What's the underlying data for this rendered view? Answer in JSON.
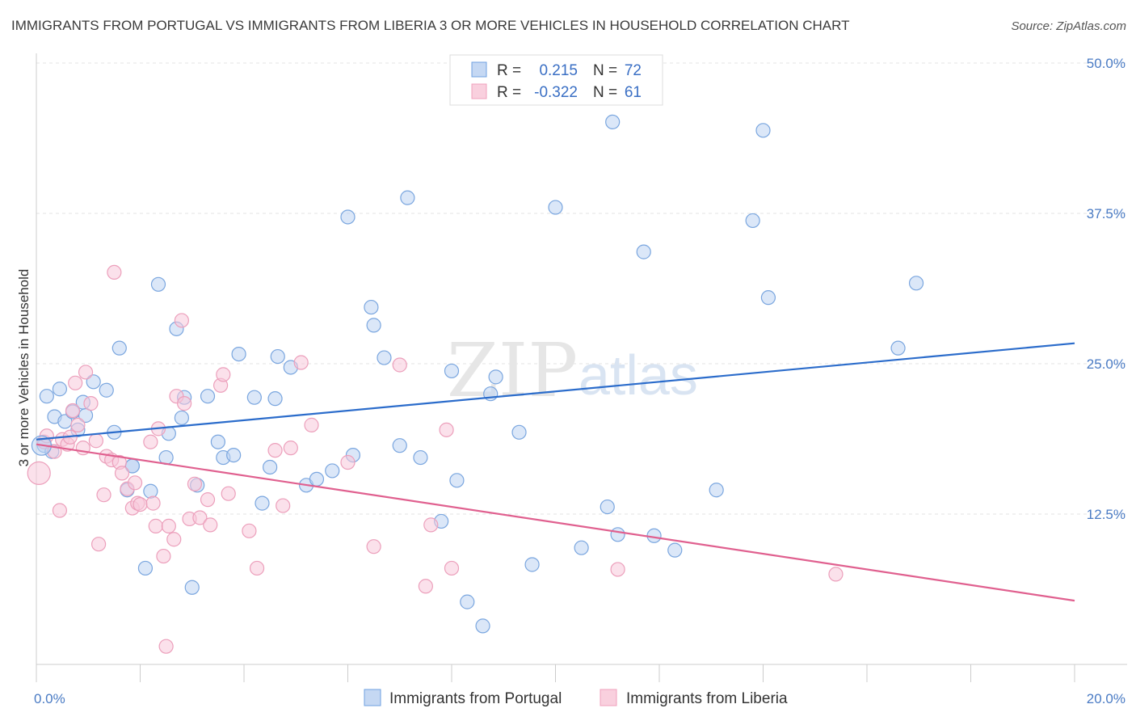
{
  "title": "IMMIGRANTS FROM PORTUGAL VS IMMIGRANTS FROM LIBERIA 3 OR MORE VEHICLES IN HOUSEHOLD CORRELATION CHART",
  "source": "Source: ZipAtlas.com",
  "watermark": {
    "zip": "ZIP",
    "atlas": "atlas"
  },
  "colors": {
    "portugal": "#6fa1e0",
    "portugal_line": "#2b6ccb",
    "liberia": "#f0a0bc",
    "liberia_line": "#e0608f",
    "tick": "#4a7bc4"
  },
  "legend": {
    "series": [
      {
        "r_label": "R =",
        "r_value": "0.215",
        "n_label": "N =",
        "n_value": "72"
      },
      {
        "r_label": "R =",
        "r_value": "-0.322",
        "n_label": "N =",
        "n_value": "61"
      }
    ]
  },
  "chart_data": {
    "type": "scatter",
    "title": "IMMIGRANTS FROM PORTUGAL VS IMMIGRANTS FROM LIBERIA 3 OR MORE VEHICLES IN HOUSEHOLD CORRELATION CHART",
    "xlabel": "",
    "ylabel": "3 or more Vehicles in Household",
    "xlim": [
      0,
      20
    ],
    "ylim": [
      0,
      50
    ],
    "x_tick_labels": [
      "0.0%",
      "20.0%"
    ],
    "y_ticks": [
      12.5,
      25.0,
      37.5,
      50.0
    ],
    "y_tick_labels": [
      "12.5%",
      "25.0%",
      "37.5%",
      "50.0%"
    ],
    "grid": true,
    "legend_position": "top-center",
    "series": [
      {
        "name": "Immigrants from Portugal",
        "color": "#6fa1e0",
        "trend": {
          "x": [
            0,
            20
          ],
          "y": [
            18.7,
            26.7
          ]
        },
        "points": [
          [
            0.2,
            22.3
          ],
          [
            0.45,
            22.9
          ],
          [
            0.35,
            20.6
          ],
          [
            0.55,
            20.2
          ],
          [
            0.7,
            21.0
          ],
          [
            0.8,
            19.5
          ],
          [
            0.95,
            20.7
          ],
          [
            0.9,
            21.8
          ],
          [
            1.1,
            23.5
          ],
          [
            1.35,
            22.8
          ],
          [
            0.15,
            18.2
          ],
          [
            0.3,
            17.7
          ],
          [
            1.5,
            19.3
          ],
          [
            1.6,
            26.3
          ],
          [
            1.85,
            16.5
          ],
          [
            1.75,
            14.5
          ],
          [
            2.2,
            14.4
          ],
          [
            2.5,
            17.2
          ],
          [
            2.55,
            19.2
          ],
          [
            2.35,
            31.6
          ],
          [
            2.7,
            27.9
          ],
          [
            2.85,
            22.2
          ],
          [
            2.8,
            20.5
          ],
          [
            3.1,
            14.9
          ],
          [
            3.3,
            22.3
          ],
          [
            3.5,
            18.5
          ],
          [
            3.6,
            17.2
          ],
          [
            3.8,
            17.4
          ],
          [
            3.9,
            25.8
          ],
          [
            4.2,
            22.2
          ],
          [
            4.35,
            13.4
          ],
          [
            4.5,
            16.4
          ],
          [
            4.6,
            22.1
          ],
          [
            4.65,
            25.6
          ],
          [
            4.9,
            24.7
          ],
          [
            5.2,
            14.9
          ],
          [
            5.4,
            15.4
          ],
          [
            5.7,
            16.1
          ],
          [
            6.0,
            37.2
          ],
          [
            6.1,
            17.4
          ],
          [
            6.45,
            29.7
          ],
          [
            6.5,
            28.2
          ],
          [
            6.7,
            25.5
          ],
          [
            7.0,
            18.2
          ],
          [
            7.15,
            38.8
          ],
          [
            7.4,
            17.2
          ],
          [
            7.8,
            11.9
          ],
          [
            8.0,
            24.4
          ],
          [
            8.1,
            15.3
          ],
          [
            8.3,
            5.2
          ],
          [
            8.6,
            3.2
          ],
          [
            8.75,
            22.5
          ],
          [
            8.85,
            23.9
          ],
          [
            9.3,
            19.3
          ],
          [
            9.55,
            8.3
          ],
          [
            10.0,
            38.0
          ],
          [
            10.5,
            9.7
          ],
          [
            11.0,
            13.1
          ],
          [
            11.1,
            45.1
          ],
          [
            11.2,
            10.8
          ],
          [
            11.7,
            34.3
          ],
          [
            11.9,
            10.7
          ],
          [
            12.3,
            9.5
          ],
          [
            13.1,
            14.5
          ],
          [
            13.8,
            36.9
          ],
          [
            14.0,
            44.4
          ],
          [
            14.1,
            30.5
          ],
          [
            16.6,
            26.3
          ],
          [
            16.95,
            31.7
          ],
          [
            1.85,
            16.5
          ],
          [
            3.0,
            6.4
          ],
          [
            2.1,
            8.0
          ]
        ]
      },
      {
        "name": "Immigrants from Liberia",
        "color": "#f0a0bc",
        "trend": {
          "x": [
            0,
            20
          ],
          "y": [
            18.3,
            5.3
          ]
        },
        "points": [
          [
            0.05,
            15.9
          ],
          [
            0.15,
            18.5
          ],
          [
            0.2,
            19.0
          ],
          [
            0.35,
            17.7
          ],
          [
            0.45,
            12.8
          ],
          [
            0.5,
            18.7
          ],
          [
            0.6,
            18.3
          ],
          [
            0.65,
            18.9
          ],
          [
            0.7,
            21.1
          ],
          [
            0.75,
            23.4
          ],
          [
            0.8,
            19.9
          ],
          [
            0.9,
            18.0
          ],
          [
            0.95,
            24.3
          ],
          [
            1.05,
            21.7
          ],
          [
            1.15,
            18.6
          ],
          [
            1.2,
            10.0
          ],
          [
            1.3,
            14.1
          ],
          [
            1.35,
            17.3
          ],
          [
            1.45,
            17.0
          ],
          [
            1.5,
            32.6
          ],
          [
            1.6,
            16.8
          ],
          [
            1.65,
            15.9
          ],
          [
            1.75,
            14.6
          ],
          [
            1.85,
            13.0
          ],
          [
            1.9,
            15.1
          ],
          [
            1.95,
            13.4
          ],
          [
            2.0,
            13.3
          ],
          [
            2.2,
            18.5
          ],
          [
            2.25,
            13.4
          ],
          [
            2.3,
            11.5
          ],
          [
            2.35,
            19.6
          ],
          [
            2.45,
            9.0
          ],
          [
            2.5,
            1.5
          ],
          [
            2.55,
            11.5
          ],
          [
            2.65,
            10.4
          ],
          [
            2.7,
            22.3
          ],
          [
            2.8,
            28.6
          ],
          [
            2.85,
            21.7
          ],
          [
            2.95,
            12.1
          ],
          [
            3.05,
            15.0
          ],
          [
            3.15,
            12.2
          ],
          [
            3.3,
            13.7
          ],
          [
            3.35,
            11.6
          ],
          [
            3.55,
            23.2
          ],
          [
            3.6,
            24.1
          ],
          [
            3.7,
            14.2
          ],
          [
            4.1,
            11.1
          ],
          [
            4.25,
            8.0
          ],
          [
            4.6,
            17.8
          ],
          [
            4.75,
            13.2
          ],
          [
            4.9,
            18.0
          ],
          [
            5.1,
            25.1
          ],
          [
            5.3,
            19.9
          ],
          [
            6.0,
            16.8
          ],
          [
            6.5,
            9.8
          ],
          [
            7.0,
            24.9
          ],
          [
            7.5,
            6.5
          ],
          [
            7.6,
            11.6
          ],
          [
            7.9,
            19.5
          ],
          [
            8.0,
            8.0
          ],
          [
            11.2,
            7.9
          ],
          [
            15.4,
            7.5
          ]
        ]
      }
    ]
  },
  "bottom_legend": [
    {
      "label": "Immigrants from Portugal"
    },
    {
      "label": "Immigrants from Liberia"
    }
  ]
}
